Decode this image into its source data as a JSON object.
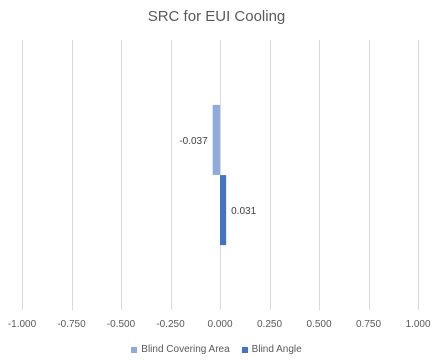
{
  "chart_data": {
    "type": "bar",
    "orientation": "horizontal",
    "title": "SRC for EUI Cooling",
    "xlim": [
      -1.0,
      1.0
    ],
    "x_ticks": [
      -1.0,
      -0.75,
      -0.5,
      -0.25,
      0.0,
      0.25,
      0.5,
      0.75,
      1.0
    ],
    "x_tick_labels": [
      "-1.000",
      "-0.750",
      "-0.500",
      "-0.250",
      "0.000",
      "0.250",
      "0.500",
      "0.750",
      "1.000"
    ],
    "grid": "vertical",
    "legend_position": "bottom",
    "series": [
      {
        "name": "Blind Covering Area",
        "value": -0.037,
        "label": "-0.037",
        "color": "#8faadc"
      },
      {
        "name": "Blind Angle",
        "value": 0.031,
        "label": "0.031",
        "color": "#4472c4"
      }
    ]
  }
}
